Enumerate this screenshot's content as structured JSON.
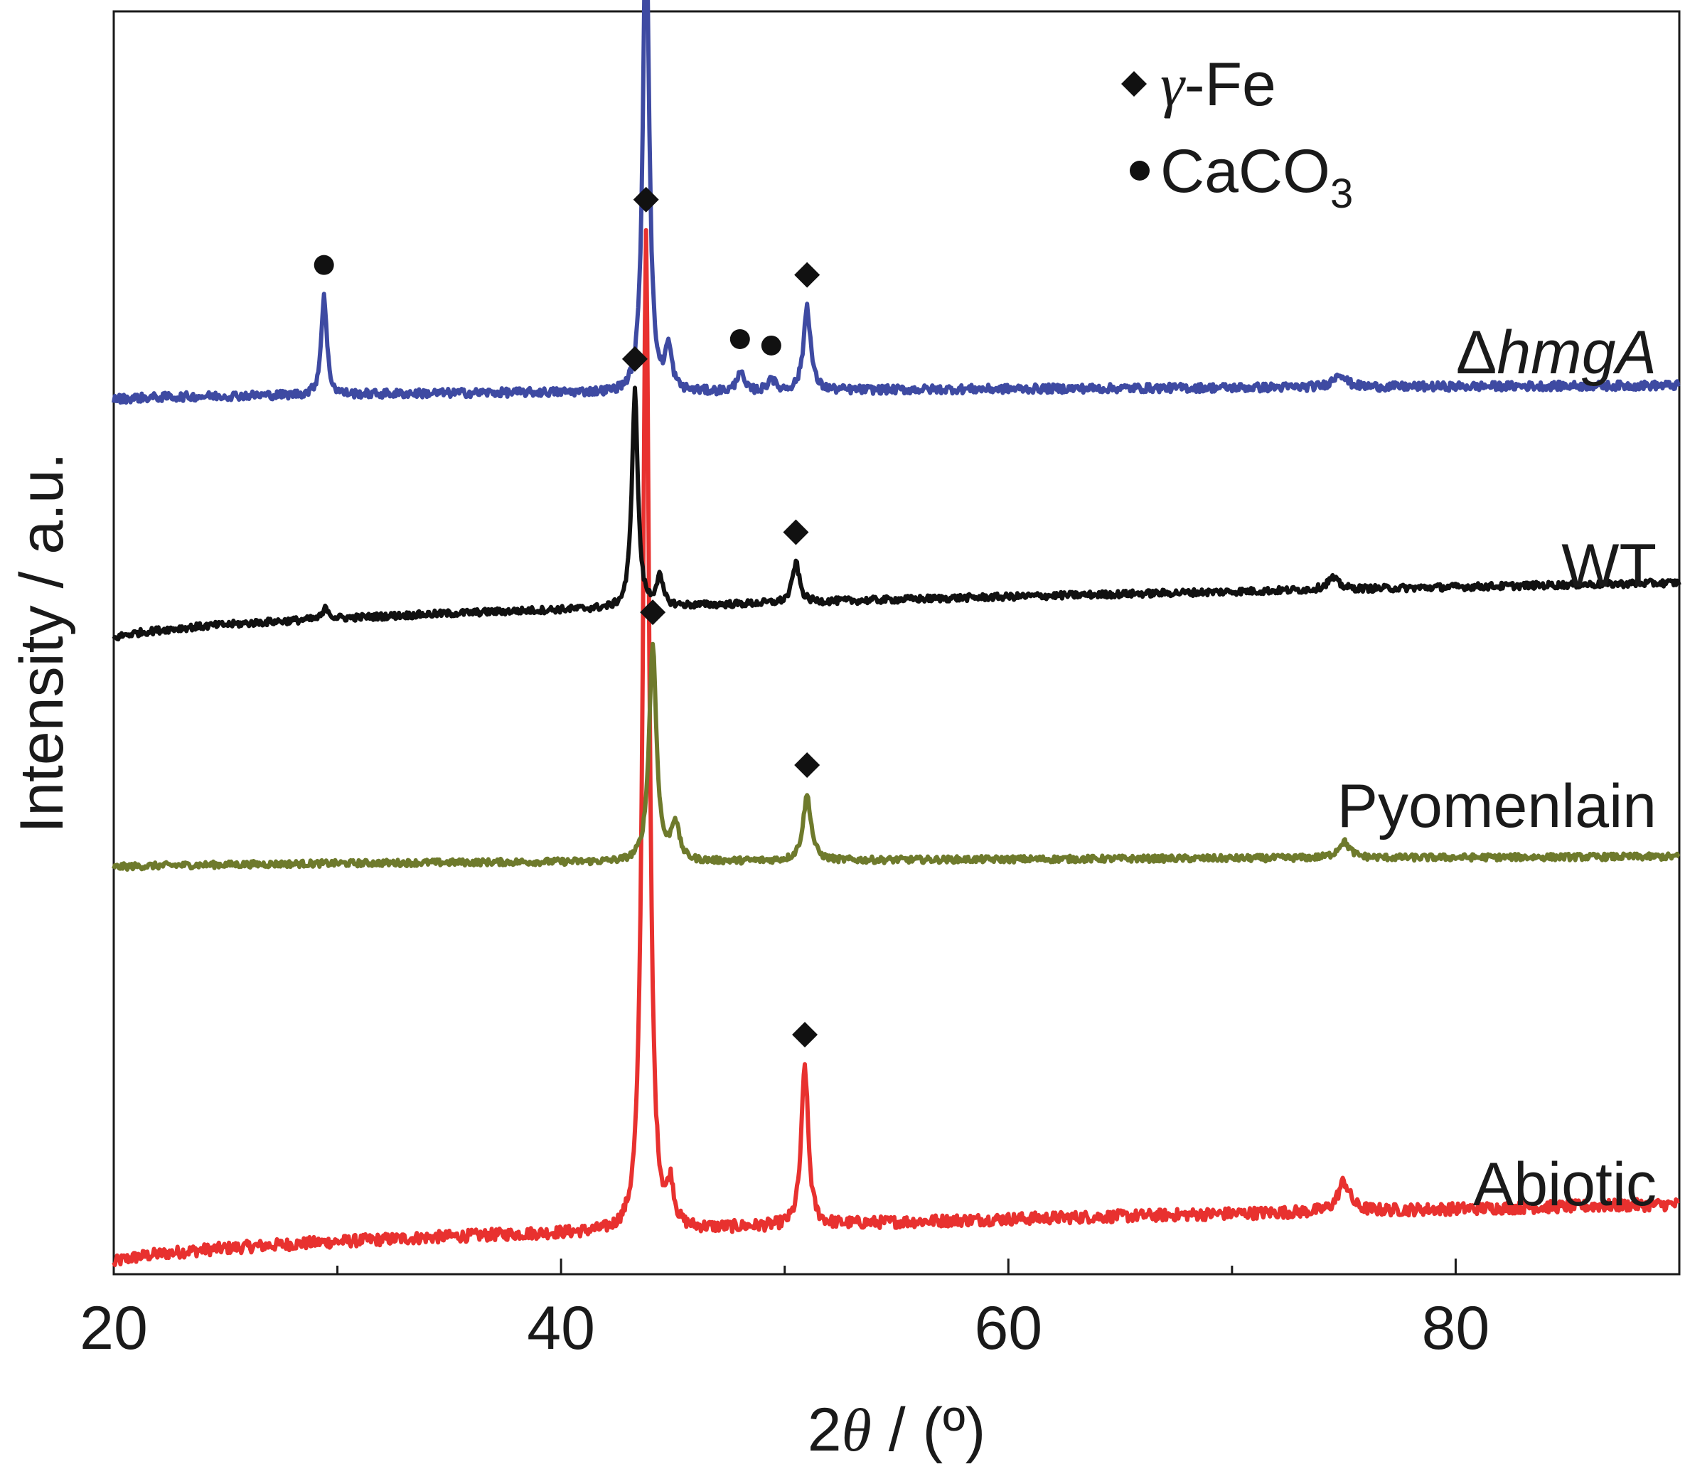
{
  "chart_data": {
    "type": "line",
    "xlabel": {
      "prefix": "2",
      "symbol": "θ",
      "suffix": " / (º)"
    },
    "ylabel": "Intensity / a.u.",
    "xlim": [
      20,
      90
    ],
    "xticks": [
      20,
      40,
      60,
      80
    ],
    "xtick_labels": [
      "20",
      "40",
      "60",
      "80"
    ],
    "yticks": "none",
    "grid": false,
    "legend": {
      "placement": "top-right",
      "entries": [
        {
          "marker": "diamond",
          "symbol": "γ",
          "text": "-Fe"
        },
        {
          "marker": "circle",
          "text": "CaCO",
          "subscript": "3"
        }
      ]
    },
    "series": [
      {
        "name": "Abiotic",
        "color": "#e8312f",
        "baseline_start": 0,
        "baseline_end": 0.06,
        "peaks": [
          {
            "x": 43.8,
            "height": 1.0,
            "width": 0.28,
            "marker": "diamond"
          },
          {
            "x": 44.9,
            "height": 0.04,
            "width": 0.3
          },
          {
            "x": 50.9,
            "height": 0.16,
            "width": 0.3,
            "marker": "diamond"
          },
          {
            "x": 75.0,
            "height": 0.03,
            "width": 0.5
          }
        ]
      },
      {
        "name": "Pyomenlain",
        "color": "#6e7a2c",
        "baseline_start": 0,
        "baseline_end": 0.02,
        "peaks": [
          {
            "x": 44.1,
            "height": 0.4,
            "width": 0.32,
            "marker": "diamond"
          },
          {
            "x": 45.1,
            "height": 0.07,
            "width": 0.35
          },
          {
            "x": 51.0,
            "height": 0.12,
            "width": 0.35,
            "marker": "diamond"
          },
          {
            "x": 75.0,
            "height": 0.03,
            "width": 0.5
          }
        ]
      },
      {
        "name": "WT",
        "color": "#111111",
        "baseline_start": 0,
        "baseline_end": 0.1,
        "peaks": [
          {
            "x": 29.5,
            "height": 0.02,
            "width": 0.25
          },
          {
            "x": 43.3,
            "height": 0.38,
            "width": 0.26,
            "marker": "diamond"
          },
          {
            "x": 44.4,
            "height": 0.05,
            "width": 0.3
          },
          {
            "x": 50.5,
            "height": 0.07,
            "width": 0.3,
            "marker": "diamond"
          },
          {
            "x": 74.5,
            "height": 0.02,
            "width": 0.5
          }
        ]
      },
      {
        "name": "ΔhmgA",
        "name_prefix": "Δ",
        "name_italic": "hmgA",
        "color": "#3e4aa2",
        "baseline_start": 0,
        "baseline_end": 0.02,
        "peaks": [
          {
            "x": 29.4,
            "height": 0.14,
            "width": 0.24,
            "marker": "circle"
          },
          {
            "x": 43.8,
            "height": 0.7,
            "width": 0.26,
            "marker": "diamond"
          },
          {
            "x": 44.8,
            "height": 0.06,
            "width": 0.3
          },
          {
            "x": 48.0,
            "height": 0.03,
            "width": 0.25,
            "marker": "circle"
          },
          {
            "x": 49.4,
            "height": 0.02,
            "width": 0.25,
            "marker": "circle"
          },
          {
            "x": 51.0,
            "height": 0.12,
            "width": 0.3,
            "marker": "diamond"
          },
          {
            "x": 74.8,
            "height": 0.02,
            "width": 0.5
          }
        ]
      }
    ]
  }
}
